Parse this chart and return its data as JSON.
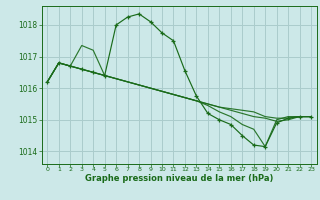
{
  "title": "Graphe pression niveau de la mer (hPa)",
  "background_color": "#cce8e8",
  "grid_color": "#aacccc",
  "line_color": "#1a6b1a",
  "xlim": [
    -0.5,
    23.5
  ],
  "ylim": [
    1013.6,
    1018.6
  ],
  "yticks": [
    1014,
    1015,
    1016,
    1017,
    1018
  ],
  "xticks": [
    0,
    1,
    2,
    3,
    4,
    5,
    6,
    7,
    8,
    9,
    10,
    11,
    12,
    13,
    14,
    15,
    16,
    17,
    18,
    19,
    20,
    21,
    22,
    23
  ],
  "series_main": {
    "x": [
      0,
      1,
      2,
      3,
      4,
      5,
      6,
      7,
      8,
      9,
      10,
      11,
      12,
      13,
      14,
      15,
      16,
      17,
      18,
      19,
      20,
      21,
      22,
      23
    ],
    "y": [
      1016.2,
      1016.8,
      1016.7,
      1016.6,
      1016.5,
      1016.4,
      1018.0,
      1018.25,
      1018.35,
      1018.1,
      1017.75,
      1017.5,
      1016.55,
      1015.75,
      1015.2,
      1015.0,
      1014.85,
      1014.5,
      1014.2,
      1014.15,
      1014.9,
      1015.05,
      1015.1,
      1015.1
    ]
  },
  "series_other": [
    {
      "x": [
        0,
        1,
        2,
        3,
        4,
        5,
        6,
        7,
        8,
        9,
        10,
        11,
        12,
        13,
        14,
        15,
        16,
        17,
        18,
        19,
        20,
        21,
        22,
        23
      ],
      "y": [
        1016.2,
        1016.8,
        1016.7,
        1017.35,
        1017.2,
        1016.4,
        1016.3,
        1016.2,
        1016.1,
        1016.0,
        1015.9,
        1015.8,
        1015.7,
        1015.6,
        1015.5,
        1015.4,
        1015.35,
        1015.3,
        1015.25,
        1015.1,
        1015.05,
        1015.05,
        1015.1,
        1015.1
      ]
    },
    {
      "x": [
        0,
        1,
        2,
        3,
        4,
        5,
        6,
        7,
        8,
        9,
        10,
        11,
        12,
        13,
        14,
        15,
        16,
        17,
        18,
        19,
        20,
        21,
        22,
        23
      ],
      "y": [
        1016.2,
        1016.8,
        1016.7,
        1016.6,
        1016.5,
        1016.4,
        1016.3,
        1016.2,
        1016.1,
        1016.0,
        1015.9,
        1015.8,
        1015.7,
        1015.6,
        1015.5,
        1015.4,
        1015.3,
        1015.2,
        1015.1,
        1015.05,
        1014.95,
        1015.0,
        1015.1,
        1015.1
      ]
    },
    {
      "x": [
        0,
        1,
        2,
        3,
        4,
        5,
        6,
        7,
        8,
        9,
        10,
        11,
        12,
        13,
        14,
        15,
        16,
        17,
        18,
        19,
        20,
        21,
        22,
        23
      ],
      "y": [
        1016.2,
        1016.8,
        1016.7,
        1016.6,
        1016.5,
        1016.4,
        1016.3,
        1016.2,
        1016.1,
        1016.0,
        1015.9,
        1015.8,
        1015.7,
        1015.6,
        1015.45,
        1015.25,
        1015.1,
        1014.85,
        1014.7,
        1014.15,
        1015.0,
        1015.1,
        1015.1,
        1015.1
      ]
    }
  ]
}
